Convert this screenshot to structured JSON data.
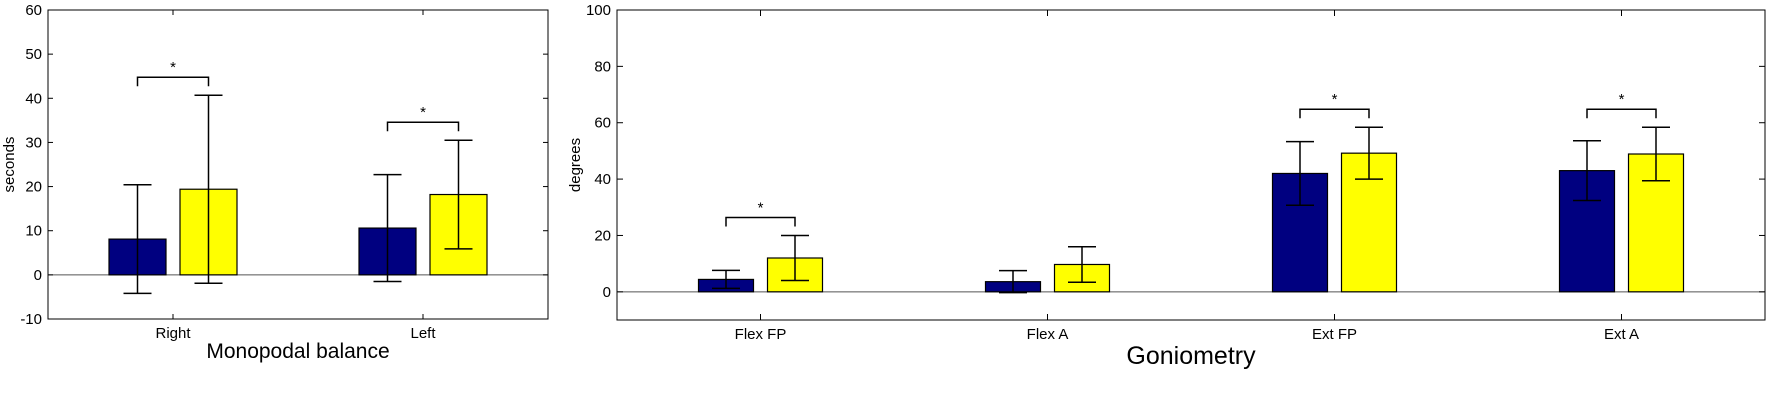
{
  "colors": {
    "series_a": "#000080",
    "series_b": "#ffff00",
    "axis": "#000000"
  },
  "chart_data": [
    {
      "type": "bar",
      "xlabel": "Monopodal balance",
      "ylabel": "seconds",
      "ylim": [
        -10,
        60
      ],
      "yticks": [
        -10,
        0,
        10,
        20,
        30,
        40,
        50,
        60
      ],
      "categories": [
        "Right",
        "Left"
      ],
      "grid": false,
      "legend": "none",
      "series": [
        {
          "color": "#000080",
          "values": [
            8.1,
            10.6
          ],
          "error": [
            12.3,
            12.1
          ]
        },
        {
          "color": "#ffff00",
          "values": [
            19.4,
            18.2
          ],
          "error": [
            21.3,
            12.3
          ]
        }
      ],
      "significance": [
        {
          "category": "Right",
          "marker": "*"
        },
        {
          "category": "Left",
          "marker": "*"
        }
      ]
    },
    {
      "type": "bar",
      "xlabel": "Goniometry",
      "ylabel": "degrees",
      "ylim": [
        -10,
        100
      ],
      "yticks": [
        0,
        20,
        40,
        60,
        80,
        100
      ],
      "categories": [
        "Flex FP",
        "Flex A",
        "Ext FP",
        "Ext A"
      ],
      "grid": false,
      "legend": "none",
      "series": [
        {
          "color": "#000080",
          "values": [
            4.4,
            3.6,
            42.0,
            43.0
          ],
          "error": [
            3.2,
            3.9,
            11.3,
            10.6
          ]
        },
        {
          "color": "#ffff00",
          "values": [
            12.0,
            9.7,
            49.2,
            48.9
          ],
          "error": [
            8.0,
            6.3,
            9.2,
            9.5
          ]
        }
      ],
      "significance": [
        {
          "category": "Flex FP",
          "marker": "*"
        },
        {
          "category": "Ext FP",
          "marker": "*"
        },
        {
          "category": "Ext A",
          "marker": "*"
        }
      ]
    }
  ]
}
